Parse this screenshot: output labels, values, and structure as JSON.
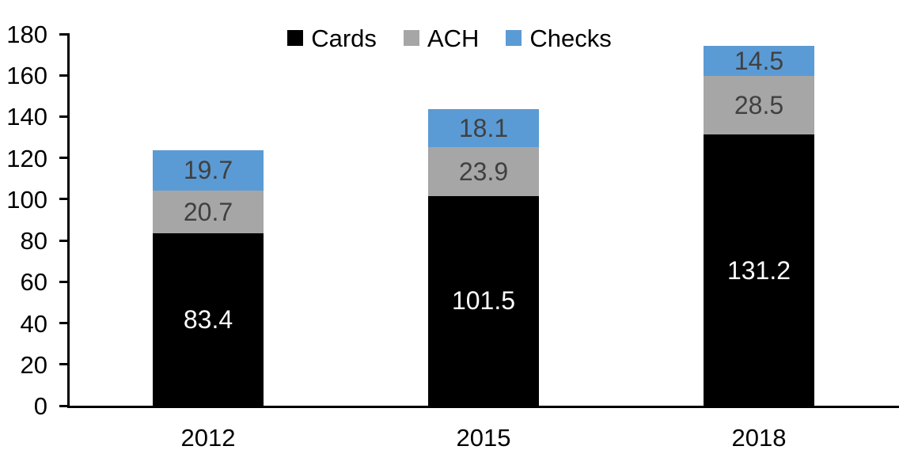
{
  "chart_data": {
    "type": "bar",
    "stacked": true,
    "title": "",
    "categories": [
      "2012",
      "2015",
      "2018"
    ],
    "series": [
      {
        "name": "Cards",
        "color": "#000000",
        "label_color": "#ffffff",
        "values": [
          83.4,
          101.5,
          131.2
        ]
      },
      {
        "name": "ACH",
        "color": "#a6a6a6",
        "label_color": "#404040",
        "values": [
          20.7,
          23.9,
          28.5
        ]
      },
      {
        "name": "Checks",
        "color": "#5b9bd5",
        "label_color": "#404040",
        "values": [
          19.7,
          18.1,
          14.5
        ]
      }
    ],
    "stack_totals": [
      123.8,
      143.5,
      174.2
    ],
    "xlabel": "",
    "ylabel": "",
    "ylim": [
      0,
      180
    ],
    "ytick_step": 20,
    "yticks": [
      "0",
      "20",
      "40",
      "60",
      "80",
      "100",
      "120",
      "140",
      "160",
      "180"
    ],
    "grid": false,
    "legend_position": "top-center",
    "axis_color": "#000000",
    "text_color": "#000000",
    "value_label_decimals": 1
  }
}
